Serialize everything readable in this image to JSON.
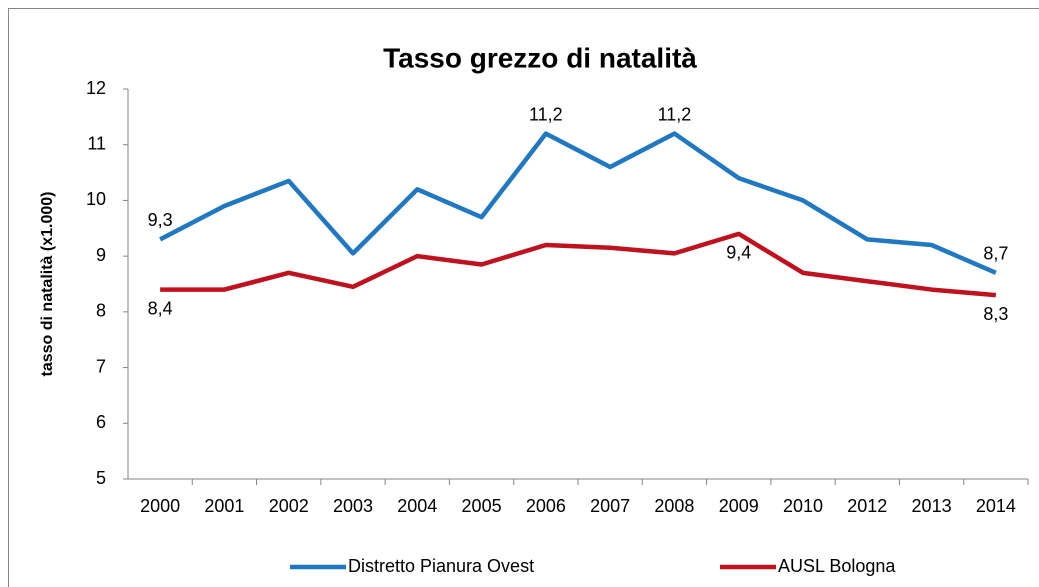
{
  "chart_data": {
    "type": "line",
    "title": "Tasso grezzo di natalità",
    "y_label": "tasso di natalità (x1.000)",
    "categories": [
      "2000",
      "2001",
      "2002",
      "2003",
      "2004",
      "2005",
      "2006",
      "2007",
      "2008",
      "2009",
      "2010",
      "2012",
      "2013",
      "2014"
    ],
    "series": [
      {
        "name": "Distretto Pianura Ovest",
        "color": "#1f78c1",
        "values": [
          9.3,
          9.9,
          10.35,
          9.05,
          10.2,
          9.7,
          11.2,
          10.6,
          11.2,
          10.4,
          10.0,
          9.3,
          9.2,
          8.7
        ],
        "value_labels": [
          "9,3",
          null,
          null,
          null,
          null,
          null,
          "11,2",
          null,
          "11,2",
          null,
          null,
          null,
          null,
          "8,7"
        ]
      },
      {
        "name": "AUSL Bologna",
        "color": "#c0121e",
        "values": [
          8.4,
          8.4,
          8.7,
          8.45,
          9.0,
          8.85,
          9.2,
          9.15,
          9.05,
          9.4,
          8.7,
          8.55,
          8.4,
          8.3
        ],
        "value_labels": [
          "8,4",
          null,
          null,
          null,
          null,
          null,
          null,
          null,
          null,
          "9,4",
          null,
          null,
          null,
          "8,3"
        ]
      }
    ],
    "ylim": [
      5,
      12
    ],
    "yticks": [
      5,
      6,
      7,
      8,
      9,
      10,
      11,
      12
    ],
    "grid": false,
    "legend": "bottom"
  }
}
